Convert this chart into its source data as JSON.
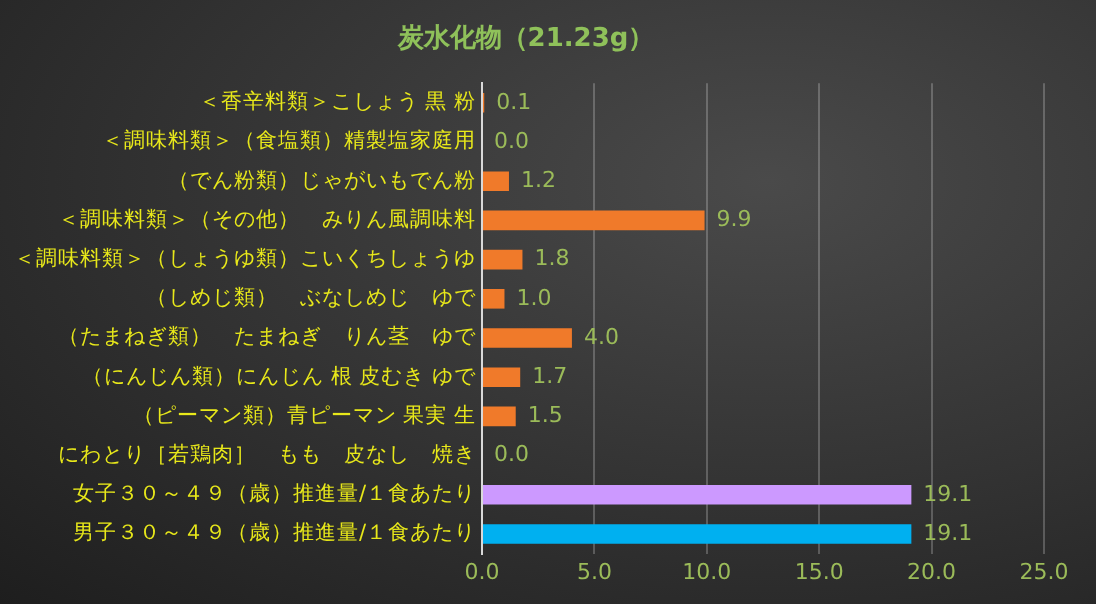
{
  "chart_data": {
    "type": "bar",
    "orientation": "horizontal",
    "title": "炭水化物（21.23g）",
    "categories": [
      "＜香辛料類＞こしょう 黒 粉",
      "＜調味料類＞（食塩類）精製塩家庭用",
      "（でん粉類）じゃがいもでん粉",
      "＜調味料類＞（その他）　みりん風調味料",
      "＜調味料類＞（しょうゆ類）こいくちしょうゆ",
      "（しめじ類）　ぶなしめじ　ゆで",
      "（たまねぎ類）　たまねぎ　りん茎　ゆで",
      "（にんじん類）にんじん 根 皮むき ゆで",
      "（ピーマン類）青ピーマン 果実 生",
      "にわとり［若鶏肉］　もも　皮なし　焼き",
      "女子３０～４９（歳）推進量/１食あたり",
      "男子３０～４９（歳）推進量/１食あたり"
    ],
    "values": [
      0.1,
      0.0,
      1.2,
      9.9,
      1.8,
      1.0,
      4.0,
      1.7,
      1.5,
      0.0,
      19.1,
      19.1
    ],
    "value_labels": [
      "0.1",
      "0.0",
      "1.2",
      "9.9",
      "1.8",
      "1.0",
      "4.0",
      "1.7",
      "1.5",
      "0.0",
      "19.1",
      "19.1"
    ],
    "colors": [
      "#f07a2a",
      "#f07a2a",
      "#f07a2a",
      "#f07a2a",
      "#f07a2a",
      "#f07a2a",
      "#f07a2a",
      "#f07a2a",
      "#f07a2a",
      "#f07a2a",
      "#cc99ff",
      "#00b0f0"
    ],
    "xlim": [
      0,
      25
    ],
    "xticks": [
      {
        "value": 0,
        "label": "0.0"
      },
      {
        "value": 5,
        "label": "5.0"
      },
      {
        "value": 10,
        "label": "10.0"
      },
      {
        "value": 15,
        "label": "15.0"
      },
      {
        "value": 20,
        "label": "20.0"
      },
      {
        "value": 25,
        "label": "25.0"
      }
    ],
    "grid": "x",
    "legend": false
  }
}
